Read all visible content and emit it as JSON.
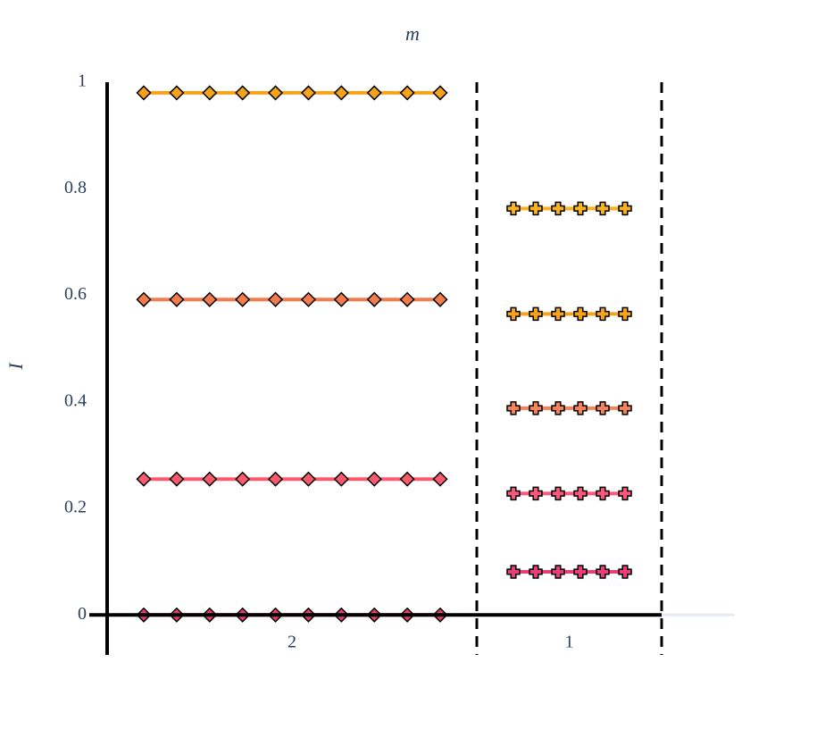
{
  "chart_data": {
    "type": "grouped-line",
    "title": "m",
    "y_label": "I",
    "ylim": [
      -0.075,
      1
    ],
    "yticks": [
      0,
      0.2,
      0.4,
      0.6,
      0.8,
      1
    ],
    "groups": [
      {
        "label": "2",
        "marker": "diamond",
        "series": [
          {
            "color": "#f7a21b",
            "values": [
              0.98,
              0.98,
              0.98,
              0.98,
              0.98,
              0.98,
              0.98,
              0.98,
              0.98,
              0.98
            ]
          },
          {
            "color": "#f47c4c",
            "values": [
              0.592,
              0.592,
              0.592,
              0.592,
              0.592,
              0.592,
              0.592,
              0.592,
              0.592,
              0.592
            ]
          },
          {
            "color": "#fb5a6e",
            "values": [
              0.255,
              0.255,
              0.255,
              0.255,
              0.255,
              0.255,
              0.255,
              0.255,
              0.255,
              0.255
            ]
          },
          {
            "color": "#e0406a",
            "values": [
              0,
              0,
              0,
              0,
              0,
              0,
              0,
              0,
              0,
              0
            ]
          }
        ]
      },
      {
        "label": "1",
        "marker": "cross",
        "series": [
          {
            "color": "#f9b11d",
            "values": [
              0.763,
              0.763,
              0.763,
              0.763,
              0.763,
              0.763
            ]
          },
          {
            "color": "#f7a21b",
            "values": [
              0.565,
              0.565,
              0.565,
              0.565,
              0.565,
              0.565
            ]
          },
          {
            "color": "#f6825a",
            "values": [
              0.388,
              0.388,
              0.388,
              0.388,
              0.388,
              0.388
            ]
          },
          {
            "color": "#f8597a",
            "values": [
              0.228,
              0.228,
              0.228,
              0.228,
              0.228,
              0.228
            ]
          },
          {
            "color": "#e83e7b",
            "values": [
              0.081,
              0.081,
              0.081,
              0.081,
              0.081,
              0.081
            ]
          }
        ]
      }
    ]
  }
}
